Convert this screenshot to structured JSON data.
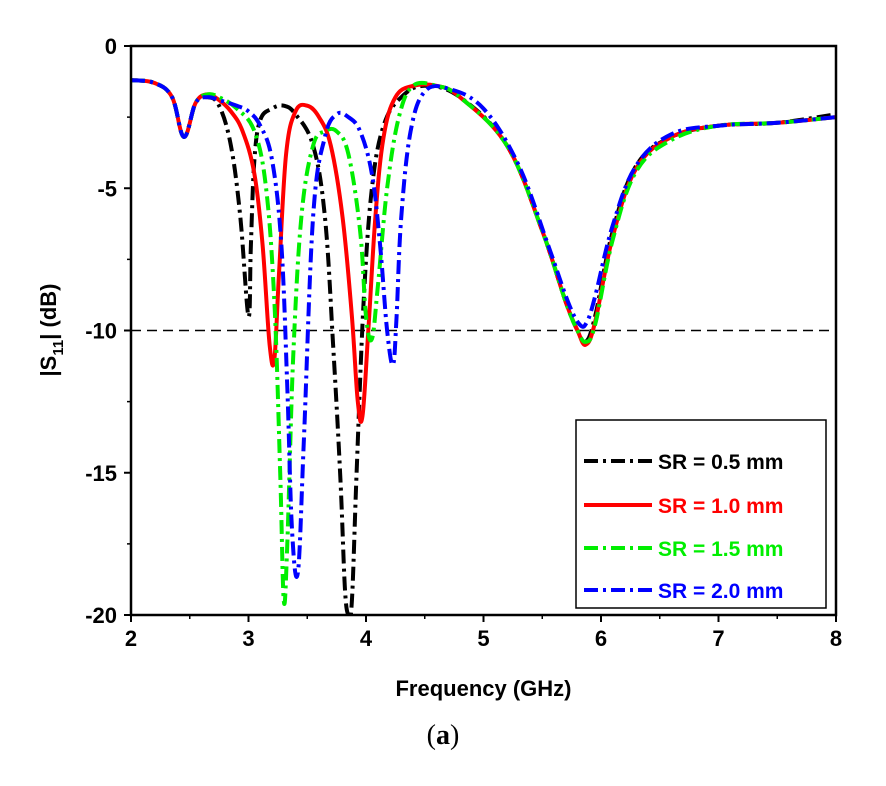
{
  "caption": {
    "open": "(",
    "letter": "a",
    "close": ")"
  },
  "chart_data": {
    "type": "line",
    "title": "",
    "xlabel": "Frequency (GHz)",
    "ylabel_main": "|S",
    "ylabel_sub": "11",
    "ylabel_tail": "| (dB)",
    "xlim": [
      2,
      8
    ],
    "ylim": [
      -20,
      0
    ],
    "xticks": [
      "2",
      "3",
      "4",
      "5",
      "6",
      "7",
      "8"
    ],
    "yticks": [
      "0",
      "-5",
      "-10",
      "-15",
      "-20"
    ],
    "reference_line": {
      "y": -10,
      "style": "dashed"
    },
    "legend_position": "bottom-right",
    "series": [
      {
        "name": "SR = 0.5 mm",
        "color": "#000000",
        "dash": "dashdot",
        "x": [
          2.0,
          2.2,
          2.35,
          2.45,
          2.55,
          2.65,
          2.75,
          2.85,
          2.93,
          3.0,
          3.02,
          3.05,
          3.1,
          3.2,
          3.3,
          3.4,
          3.55,
          3.65,
          3.72,
          3.78,
          3.82,
          3.85,
          3.88,
          3.92,
          3.98,
          4.05,
          4.15,
          4.3,
          4.5,
          4.8,
          5.2,
          5.5,
          5.7,
          5.8,
          5.87,
          5.95,
          6.1,
          6.3,
          6.6,
          7.0,
          7.5,
          8.0
        ],
        "y": [
          -1.2,
          -1.3,
          -1.8,
          -3.2,
          -2.0,
          -1.8,
          -2.1,
          -3.5,
          -6.0,
          -9.5,
          -7.0,
          -4.0,
          -2.6,
          -2.2,
          -2.1,
          -2.4,
          -3.5,
          -6.0,
          -10.5,
          -15.0,
          -19.0,
          -20.0,
          -19.5,
          -15.0,
          -9.0,
          -5.0,
          -2.8,
          -1.8,
          -1.4,
          -1.8,
          -3.5,
          -6.5,
          -9.0,
          -10.0,
          -10.4,
          -9.5,
          -6.5,
          -4.2,
          -3.2,
          -2.8,
          -2.7,
          -2.4
        ]
      },
      {
        "name": "SR = 1.0 mm",
        "color": "#ff0000",
        "dash": "solid",
        "x": [
          2.0,
          2.2,
          2.35,
          2.45,
          2.55,
          2.65,
          2.75,
          2.85,
          2.95,
          3.05,
          3.12,
          3.18,
          3.22,
          3.26,
          3.32,
          3.4,
          3.5,
          3.6,
          3.7,
          3.8,
          3.88,
          3.93,
          3.97,
          4.02,
          4.08,
          4.15,
          4.25,
          4.4,
          4.6,
          4.8,
          5.2,
          5.5,
          5.7,
          5.8,
          5.87,
          5.95,
          6.1,
          6.3,
          6.6,
          7.0,
          7.5,
          8.0
        ],
        "y": [
          -1.2,
          -1.3,
          -1.8,
          -3.2,
          -2.0,
          -1.7,
          -1.9,
          -2.3,
          -3.0,
          -4.5,
          -7.0,
          -10.5,
          -11.0,
          -8.0,
          -3.8,
          -2.3,
          -2.1,
          -2.5,
          -3.5,
          -6.0,
          -9.5,
          -12.5,
          -13.0,
          -10.0,
          -6.0,
          -3.2,
          -1.8,
          -1.4,
          -1.4,
          -1.8,
          -3.5,
          -6.5,
          -9.0,
          -10.0,
          -10.5,
          -9.7,
          -6.7,
          -4.3,
          -3.2,
          -2.8,
          -2.7,
          -2.5
        ]
      },
      {
        "name": "SR = 1.5 mm",
        "color": "#00ee00",
        "dash": "dashdot",
        "x": [
          2.0,
          2.2,
          2.35,
          2.45,
          2.55,
          2.65,
          2.75,
          2.9,
          3.05,
          3.15,
          3.22,
          3.27,
          3.3,
          3.33,
          3.38,
          3.45,
          3.55,
          3.65,
          3.75,
          3.85,
          3.95,
          4.0,
          4.05,
          4.1,
          4.18,
          4.28,
          4.4,
          4.6,
          4.8,
          5.2,
          5.5,
          5.7,
          5.8,
          5.87,
          5.95,
          6.1,
          6.3,
          6.6,
          7.0,
          7.5,
          8.0
        ],
        "y": [
          -1.2,
          -1.3,
          -1.8,
          -3.2,
          -2.0,
          -1.7,
          -1.8,
          -2.2,
          -3.0,
          -5.0,
          -9.0,
          -15.0,
          -19.5,
          -17.5,
          -11.0,
          -6.0,
          -3.5,
          -3.0,
          -3.0,
          -3.8,
          -6.5,
          -9.5,
          -10.3,
          -8.5,
          -5.0,
          -2.5,
          -1.4,
          -1.4,
          -1.8,
          -3.5,
          -6.5,
          -9.0,
          -10.0,
          -10.4,
          -9.8,
          -6.8,
          -4.4,
          -3.3,
          -2.8,
          -2.7,
          -2.5
        ]
      },
      {
        "name": "SR = 2.0 mm",
        "color": "#0000ff",
        "dash": "dashdot",
        "x": [
          2.0,
          2.2,
          2.35,
          2.45,
          2.55,
          2.65,
          2.75,
          2.9,
          3.0,
          3.1,
          3.2,
          3.28,
          3.33,
          3.37,
          3.42,
          3.47,
          3.55,
          3.65,
          3.75,
          3.85,
          3.95,
          4.05,
          4.12,
          4.18,
          4.23,
          4.26,
          4.3,
          4.38,
          4.5,
          4.7,
          5.0,
          5.3,
          5.55,
          5.72,
          5.82,
          5.88,
          5.95,
          6.1,
          6.3,
          6.6,
          7.0,
          7.5,
          8.0
        ],
        "y": [
          -1.2,
          -1.3,
          -1.8,
          -3.2,
          -2.0,
          -1.8,
          -1.9,
          -2.1,
          -2.3,
          -2.8,
          -4.0,
          -7.0,
          -12.0,
          -17.0,
          -18.5,
          -14.0,
          -6.0,
          -3.2,
          -2.4,
          -2.5,
          -3.0,
          -4.5,
          -7.0,
          -10.0,
          -11.2,
          -9.5,
          -6.0,
          -3.0,
          -1.6,
          -1.5,
          -2.2,
          -4.2,
          -7.0,
          -9.0,
          -9.8,
          -9.7,
          -8.8,
          -6.3,
          -4.2,
          -3.1,
          -2.8,
          -2.7,
          -2.5
        ]
      }
    ]
  }
}
